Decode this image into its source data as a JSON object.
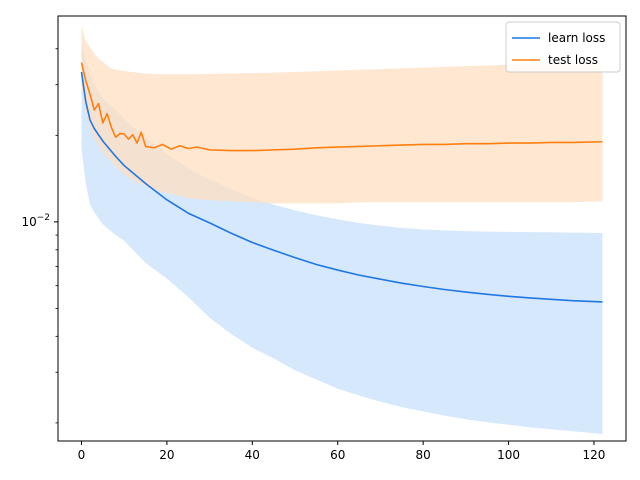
{
  "chart_data": {
    "type": "line",
    "title": "",
    "xlabel": "",
    "ylabel": "",
    "xscale": "linear",
    "yscale": "log",
    "xlim": [
      -5.5,
      127.5
    ],
    "ylim": [
      0.00173,
      0.052
    ],
    "grid": false,
    "legend": {
      "position": "top-right"
    },
    "x_ticks": [
      0,
      20,
      40,
      60,
      80,
      100,
      120
    ],
    "x_tick_labels": [
      "0",
      "20",
      "40",
      "60",
      "80",
      "100",
      "120"
    ],
    "y_major_ticks": [
      0.01
    ],
    "y_major_tick_labels": [
      "10",
      "−2"
    ],
    "y_minor_ticks": [
      0.002,
      0.003,
      0.004,
      0.005,
      0.006,
      0.007,
      0.008,
      0.009,
      0.02,
      0.03,
      0.04
    ],
    "series": [
      {
        "name": "learn loss",
        "color": "#1f77e4",
        "fill_color": "#cfe4fb",
        "x": [
          0,
          1,
          2,
          3,
          5,
          8,
          10,
          15,
          20,
          25,
          30,
          35,
          40,
          45,
          50,
          55,
          60,
          65,
          70,
          75,
          80,
          85,
          90,
          95,
          100,
          105,
          110,
          115,
          122
        ],
        "mean": [
          0.0332,
          0.0262,
          0.0226,
          0.0211,
          0.0191,
          0.0169,
          0.0157,
          0.0136,
          0.01193,
          0.01072,
          0.00992,
          0.00914,
          0.00848,
          0.00797,
          0.00751,
          0.00711,
          0.0068,
          0.00653,
          0.00632,
          0.00612,
          0.00596,
          0.00582,
          0.0057,
          0.0056,
          0.00551,
          0.00544,
          0.00538,
          0.00532,
          0.00527
        ],
        "upper": [
          0.0425,
          0.0365,
          0.0327,
          0.03,
          0.027,
          0.0245,
          0.0228,
          0.0196,
          0.01723,
          0.01538,
          0.01404,
          0.01303,
          0.01213,
          0.01148,
          0.01097,
          0.01055,
          0.0102,
          0.00992,
          0.0097,
          0.00953,
          0.00942,
          0.00934,
          0.00929,
          0.00925,
          0.00923,
          0.00921,
          0.0092,
          0.00918,
          0.00915
        ],
        "lower": [
          0.018,
          0.0136,
          0.0115,
          0.0108,
          0.0098,
          0.009,
          0.0086,
          0.0072,
          0.00635,
          0.00548,
          0.00464,
          0.00408,
          0.00365,
          0.00335,
          0.00305,
          0.00283,
          0.00263,
          0.00249,
          0.00237,
          0.00227,
          0.00219,
          0.00212,
          0.00206,
          0.00201,
          0.00197,
          0.00193,
          0.0019,
          0.00187,
          0.00183
        ]
      },
      {
        "name": "test loss",
        "color": "#ff7f0e",
        "fill_color": "#ffdfc2",
        "x": [
          0,
          1,
          2,
          3,
          4,
          5,
          6,
          7,
          8,
          9,
          10,
          11,
          12,
          13,
          14,
          15,
          17,
          19,
          21,
          23,
          25,
          27,
          30,
          35,
          40,
          45,
          50,
          55,
          60,
          65,
          70,
          75,
          80,
          85,
          90,
          95,
          100,
          105,
          110,
          115,
          122
        ],
        "mean": [
          0.0358,
          0.031,
          0.0278,
          0.0245,
          0.0258,
          0.0221,
          0.0238,
          0.0213,
          0.0197,
          0.0203,
          0.0202,
          0.0194,
          0.0201,
          0.0188,
          0.0205,
          0.0183,
          0.0181,
          0.0186,
          0.0179,
          0.0184,
          0.018,
          0.0182,
          0.0178,
          0.0177,
          0.0177,
          0.0178,
          0.0179,
          0.0181,
          0.0182,
          0.0183,
          0.0184,
          0.0185,
          0.0186,
          0.0186,
          0.0187,
          0.0187,
          0.0188,
          0.0188,
          0.0189,
          0.0189,
          0.019
        ],
        "upper": [
          0.048,
          0.0425,
          0.0405,
          0.0385,
          0.037,
          0.036,
          0.035,
          0.0342,
          0.0338,
          0.0336,
          0.0335,
          0.0333,
          0.0332,
          0.033,
          0.0329,
          0.0328,
          0.0327,
          0.0326,
          0.0326,
          0.0326,
          0.0326,
          0.0326,
          0.0327,
          0.0328,
          0.0329,
          0.033,
          0.0332,
          0.0334,
          0.0336,
          0.0338,
          0.034,
          0.0342,
          0.0344,
          0.0346,
          0.0348,
          0.035,
          0.0352,
          0.0354,
          0.0355,
          0.0356,
          0.0357
        ],
        "lower": [
          0.029,
          0.0245,
          0.0215,
          0.0195,
          0.0185,
          0.0175,
          0.0168,
          0.0162,
          0.0156,
          0.0151,
          0.0147,
          0.0143,
          0.014,
          0.0137,
          0.0135,
          0.0133,
          0.013,
          0.0127,
          0.0125,
          0.0123,
          0.0121,
          0.012,
          0.0119,
          0.0118,
          0.0117,
          0.0116,
          0.0116,
          0.0116,
          0.0116,
          0.0117,
          0.0117,
          0.0117,
          0.0117,
          0.0117,
          0.0117,
          0.0117,
          0.0117,
          0.0117,
          0.0117,
          0.0117,
          0.0118
        ]
      }
    ]
  }
}
